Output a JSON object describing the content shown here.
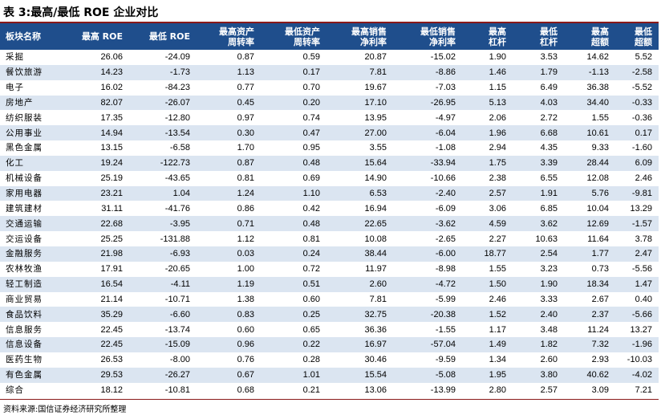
{
  "title": "表 3:最高/最低 ROE 企业对比",
  "source": "资料来源:国信证券经济研究所整理",
  "table": {
    "headers": [
      "板块名称",
      "最高 ROE",
      "最低 ROE",
      "最高资产\n周转率",
      "最低资产\n周转率",
      "最高销售\n净利率",
      "最低销售\n净利率",
      "最高\n杠杆",
      "最低\n杠杆",
      "最高\n超额",
      "最低\n超额"
    ],
    "rows": [
      [
        "采掘",
        "26.06",
        "-24.09",
        "0.87",
        "0.59",
        "20.87",
        "-15.02",
        "1.90",
        "3.53",
        "14.62",
        "5.52"
      ],
      [
        "餐饮旅游",
        "14.23",
        "-1.73",
        "1.13",
        "0.17",
        "7.81",
        "-8.86",
        "1.46",
        "1.79",
        "-1.13",
        "-2.58"
      ],
      [
        "电子",
        "16.02",
        "-84.23",
        "0.77",
        "0.70",
        "19.67",
        "-7.03",
        "1.15",
        "6.49",
        "36.38",
        "-5.52"
      ],
      [
        "房地产",
        "82.07",
        "-26.07",
        "0.45",
        "0.20",
        "17.10",
        "-26.95",
        "5.13",
        "4.03",
        "34.40",
        "-0.33"
      ],
      [
        "纺织服装",
        "17.35",
        "-12.80",
        "0.97",
        "0.74",
        "13.95",
        "-4.97",
        "2.06",
        "2.72",
        "1.55",
        "-0.36"
      ],
      [
        "公用事业",
        "14.94",
        "-13.54",
        "0.30",
        "0.47",
        "27.00",
        "-6.04",
        "1.96",
        "6.68",
        "10.61",
        "0.17"
      ],
      [
        "黑色金属",
        "13.15",
        "-6.58",
        "1.70",
        "0.95",
        "3.55",
        "-1.08",
        "2.94",
        "4.35",
        "9.33",
        "-1.60"
      ],
      [
        "化工",
        "19.24",
        "-122.73",
        "0.87",
        "0.48",
        "15.64",
        "-33.94",
        "1.75",
        "3.39",
        "28.44",
        "6.09"
      ],
      [
        "机械设备",
        "25.19",
        "-43.65",
        "0.81",
        "0.69",
        "14.90",
        "-10.66",
        "2.38",
        "6.55",
        "12.08",
        "2.46"
      ],
      [
        "家用电器",
        "23.21",
        "1.04",
        "1.24",
        "1.10",
        "6.53",
        "-2.40",
        "2.57",
        "1.91",
        "5.76",
        "-9.81"
      ],
      [
        "建筑建材",
        "31.11",
        "-41.76",
        "0.86",
        "0.42",
        "16.94",
        "-6.09",
        "3.06",
        "6.85",
        "10.04",
        "13.29"
      ],
      [
        "交通运输",
        "22.68",
        "-3.95",
        "0.71",
        "0.48",
        "22.65",
        "-3.62",
        "4.59",
        "3.62",
        "12.69",
        "-1.57"
      ],
      [
        "交运设备",
        "25.25",
        "-131.88",
        "1.12",
        "0.81",
        "10.08",
        "-2.65",
        "2.27",
        "10.63",
        "11.64",
        "3.78"
      ],
      [
        "金融服务",
        "21.98",
        "-6.93",
        "0.03",
        "0.24",
        "38.44",
        "-6.00",
        "18.77",
        "2.54",
        "1.77",
        "2.47"
      ],
      [
        "农林牧渔",
        "17.91",
        "-20.65",
        "1.00",
        "0.72",
        "11.97",
        "-8.98",
        "1.55",
        "3.23",
        "0.73",
        "-5.56"
      ],
      [
        "轻工制造",
        "16.54",
        "-4.11",
        "1.19",
        "0.51",
        "2.60",
        "-4.72",
        "1.50",
        "1.90",
        "18.34",
        "1.47"
      ],
      [
        "商业贸易",
        "21.14",
        "-10.71",
        "1.38",
        "0.60",
        "7.81",
        "-5.99",
        "2.46",
        "3.33",
        "2.67",
        "0.40"
      ],
      [
        "食品饮料",
        "35.29",
        "-6.60",
        "0.83",
        "0.25",
        "32.75",
        "-20.38",
        "1.52",
        "2.40",
        "2.37",
        "-5.66"
      ],
      [
        "信息服务",
        "22.45",
        "-13.74",
        "0.60",
        "0.65",
        "36.36",
        "-1.55",
        "1.17",
        "3.48",
        "11.24",
        "13.27"
      ],
      [
        "信息设备",
        "22.45",
        "-15.09",
        "0.96",
        "0.22",
        "16.97",
        "-57.04",
        "1.49",
        "1.82",
        "7.32",
        "-1.96"
      ],
      [
        "医药生物",
        "26.53",
        "-8.00",
        "0.76",
        "0.28",
        "30.46",
        "-9.59",
        "1.34",
        "2.60",
        "2.93",
        "-10.03"
      ],
      [
        "有色金属",
        "29.53",
        "-26.27",
        "0.67",
        "1.01",
        "15.54",
        "-5.08",
        "1.95",
        "3.80",
        "40.62",
        "-4.02"
      ],
      [
        "综合",
        "18.12",
        "-10.81",
        "0.68",
        "0.21",
        "13.06",
        "-13.99",
        "2.80",
        "2.57",
        "3.09",
        "7.21"
      ]
    ]
  }
}
